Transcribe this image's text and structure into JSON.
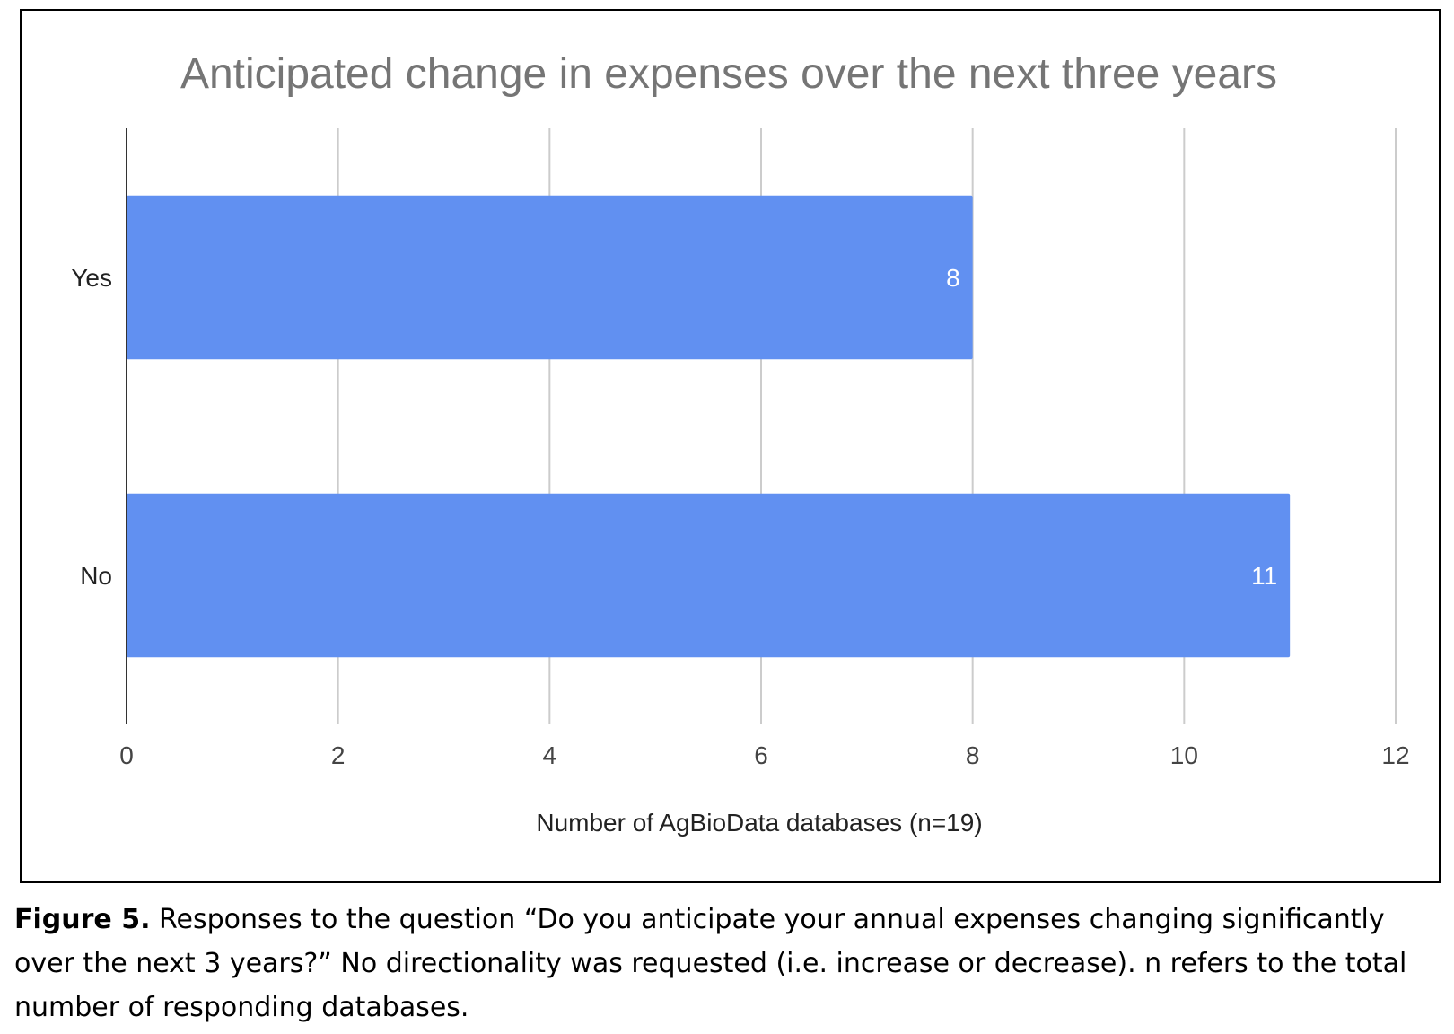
{
  "chart_data": {
    "type": "bar",
    "orientation": "horizontal",
    "title": "Anticipated change in expenses over the next three years",
    "xlabel": "Number of AgBioData databases (n=19)",
    "ylabel": "",
    "categories": [
      "Yes",
      "No"
    ],
    "values": [
      8,
      11
    ],
    "data_labels": [
      "8",
      "11"
    ],
    "xlim": [
      0,
      12
    ],
    "xticks": [
      "0",
      "2",
      "4",
      "6",
      "8",
      "10",
      "12"
    ],
    "grid": "vertical",
    "legend": "none",
    "colors": {
      "bar": "#6190f1",
      "title": "#757575",
      "grid": "#cccccc",
      "axis": "#333333",
      "data_label": "#ffffff"
    }
  },
  "caption": {
    "label": "Figure 5.",
    "text": " Responses to the question “Do you anticipate your annual expenses changing significantly over the next 3 years?” No directionality was requested (i.e. increase or decrease). n refers to the total number of responding databases."
  }
}
